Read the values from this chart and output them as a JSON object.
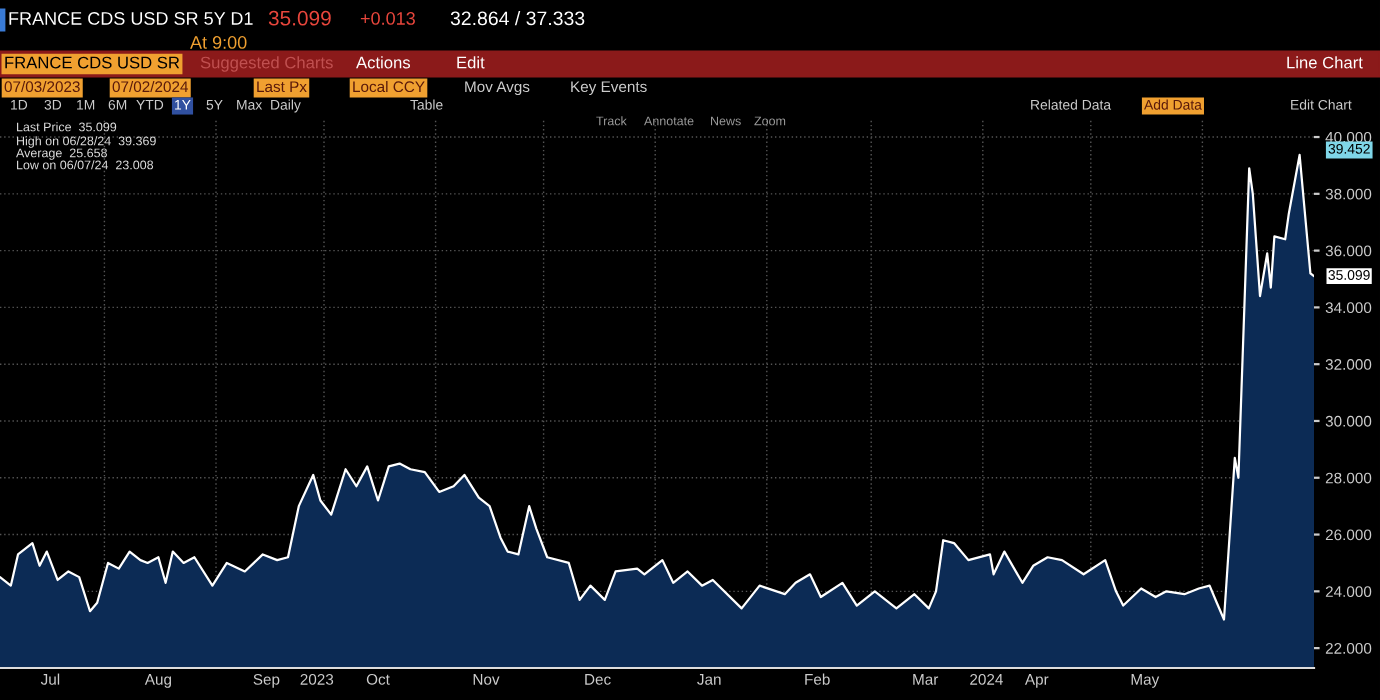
{
  "chart_data": {
    "type": "area",
    "title": "FRANCE CDS USD SR 5Y D1",
    "x": [
      "2023-07-03",
      "2023-07-06",
      "2023-07-08",
      "2023-07-12",
      "2023-07-14",
      "2023-07-16",
      "2023-07-19",
      "2023-07-22",
      "2023-07-25",
      "2023-07-28",
      "2023-07-30",
      "2023-08-02",
      "2023-08-05",
      "2023-08-08",
      "2023-08-11",
      "2023-08-13",
      "2023-08-16",
      "2023-08-18",
      "2023-08-20",
      "2023-08-23",
      "2023-08-26",
      "2023-08-31",
      "2023-09-04",
      "2023-09-09",
      "2023-09-14",
      "2023-09-18",
      "2023-09-21",
      "2023-09-24",
      "2023-09-28",
      "2023-09-30",
      "2023-10-03",
      "2023-10-07",
      "2023-10-10",
      "2023-10-13",
      "2023-10-16",
      "2023-10-19",
      "2023-10-22",
      "2023-10-25",
      "2023-10-29",
      "2023-11-02",
      "2023-11-06",
      "2023-11-09",
      "2023-11-13",
      "2023-11-16",
      "2023-11-19",
      "2023-11-21",
      "2023-11-24",
      "2023-11-27",
      "2023-11-29",
      "2023-12-02",
      "2023-12-08",
      "2023-12-11",
      "2023-12-14",
      "2023-12-18",
      "2023-12-21",
      "2023-12-27",
      "2023-12-29",
      "2024-01-03",
      "2024-01-06",
      "2024-01-10",
      "2024-01-14",
      "2024-01-17",
      "2024-01-25",
      "2024-01-30",
      "2024-02-06",
      "2024-02-09",
      "2024-02-13",
      "2024-02-16",
      "2024-02-22",
      "2024-02-26",
      "2024-03-02",
      "2024-03-08",
      "2024-03-13",
      "2024-03-17",
      "2024-03-19",
      "2024-03-21",
      "2024-03-24",
      "2024-03-28",
      "2024-04-03",
      "2024-04-04",
      "2024-04-07",
      "2024-04-12",
      "2024-04-15",
      "2024-04-19",
      "2024-04-23",
      "2024-04-29",
      "2024-05-05",
      "2024-05-08",
      "2024-05-10",
      "2024-05-15",
      "2024-05-19",
      "2024-05-22",
      "2024-05-27",
      "2024-05-31",
      "2024-06-03",
      "2024-06-05",
      "2024-06-07",
      "2024-06-10",
      "2024-06-11",
      "2024-06-14",
      "2024-06-15",
      "2024-06-17",
      "2024-06-19",
      "2024-06-20",
      "2024-06-21",
      "2024-06-24",
      "2024-06-25",
      "2024-06-28",
      "2024-07-01",
      "2024-07-02"
    ],
    "series": [
      {
        "color": "#0c2b55",
        "values": [
          24.5,
          24.2,
          25.3,
          25.7,
          24.9,
          25.4,
          24.4,
          24.7,
          24.5,
          23.3,
          23.6,
          25.0,
          24.8,
          25.4,
          25.1,
          25.0,
          25.2,
          24.3,
          25.4,
          25.0,
          25.2,
          24.2,
          25.0,
          24.7,
          25.3,
          25.1,
          25.2,
          27.0,
          28.1,
          27.2,
          26.7,
          28.3,
          27.7,
          28.4,
          27.2,
          28.4,
          28.5,
          28.3,
          28.2,
          27.5,
          27.7,
          28.1,
          27.3,
          27.0,
          25.9,
          25.4,
          25.3,
          27.0,
          26.2,
          25.2,
          25.0,
          23.7,
          24.2,
          23.7,
          24.7,
          24.8,
          24.6,
          25.1,
          24.3,
          24.7,
          24.2,
          24.4,
          23.4,
          24.2,
          23.9,
          24.3,
          24.6,
          23.8,
          24.3,
          23.5,
          24.0,
          23.4,
          23.9,
          23.4,
          24.0,
          25.8,
          25.7,
          25.1,
          25.3,
          24.6,
          25.4,
          24.3,
          24.9,
          25.2,
          25.1,
          24.6,
          25.1,
          24.0,
          23.5,
          24.1,
          23.8,
          24.0,
          23.9,
          24.1,
          24.2,
          23.6,
          23.008,
          28.7,
          28.0,
          38.9,
          38.0,
          34.4,
          35.9,
          34.7,
          36.5,
          36.4,
          37.3,
          39.369,
          35.2,
          35.099
        ]
      }
    ],
    "ylim": [
      21.3,
      40.6
    ],
    "yticks": [
      {
        "value": 22,
        "label": "22.000"
      },
      {
        "value": 24,
        "label": "24.000"
      },
      {
        "value": 26,
        "label": "26.000"
      },
      {
        "value": 28,
        "label": "28.000"
      },
      {
        "value": 30,
        "label": "30.000"
      },
      {
        "value": 32,
        "label": "32.000"
      },
      {
        "value": 34,
        "label": "34.000"
      },
      {
        "value": 36,
        "label": "36.000"
      },
      {
        "value": 38,
        "label": "38.000"
      },
      {
        "value": 40,
        "label": "40.000"
      }
    ],
    "xlim": [
      "2023-07-03",
      "2024-07-02"
    ],
    "xticks": [
      {
        "value": "2023-07-17",
        "label": "Jul"
      },
      {
        "value": "2023-08-01",
        "label": null
      },
      {
        "value": "2023-08-16",
        "label": "Aug"
      },
      {
        "value": "2023-09-01",
        "label": null
      },
      {
        "value": "2023-09-15",
        "label": "Sep"
      },
      {
        "value": "2023-09-29",
        "label": "2023"
      },
      {
        "value": "2023-10-01",
        "label": null
      },
      {
        "value": "2023-10-16",
        "label": "Oct"
      },
      {
        "value": "2023-11-01",
        "label": null
      },
      {
        "value": "2023-11-15",
        "label": "Nov"
      },
      {
        "value": "2023-12-01",
        "label": null
      },
      {
        "value": "2023-12-16",
        "label": "Dec"
      },
      {
        "value": "2024-01-01",
        "label": null
      },
      {
        "value": "2024-01-16",
        "label": "Jan"
      },
      {
        "value": "2024-02-01",
        "label": null
      },
      {
        "value": "2024-02-15",
        "label": "Feb"
      },
      {
        "value": "2024-03-01",
        "label": null
      },
      {
        "value": "2024-03-16",
        "label": "Mar"
      },
      {
        "value": "2024-04-01",
        "label": null
      },
      {
        "value": "2024-04-02",
        "label": "2024"
      },
      {
        "value": "2024-04-16",
        "label": "Apr"
      },
      {
        "value": "2024-05-01",
        "label": null
      },
      {
        "value": "2024-05-16",
        "label": "May"
      },
      {
        "value": "2024-06-01",
        "label": null
      }
    ],
    "grid": true,
    "annotations": [
      "35.099",
      "+0.013",
      "32.864 / 37.333",
      "At 9:00",
      "FRANCE CDS USD SR",
      "Suggested Charts",
      "Actions",
      "Edit",
      "Line Chart",
      "07/03/2023",
      "07/02/2024",
      "Last Px",
      "Local CCY",
      "Mov Avgs",
      "Key Events",
      "1D",
      "3D",
      "1M",
      "6M",
      "YTD",
      "1Y",
      "5Y",
      "Max",
      "Daily",
      "Table",
      "Related Data",
      "Add Data",
      "Edit Chart",
      "Track",
      "Annotate",
      "News",
      "Zoom",
      "Last Price  35.099",
      "High on 06/28/24  39.369",
      "Average  25.658",
      "Low on 06/07/24  23.008",
      "39.452",
      {
        "text": "35.099",
        "x": "2024-07-02",
        "y": 35.099
      }
    ]
  }
}
